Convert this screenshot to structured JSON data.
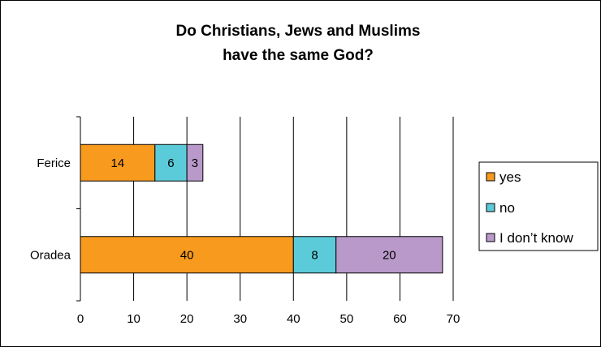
{
  "chart_data": {
    "type": "bar",
    "orientation": "horizontal",
    "stacked": true,
    "title": "Do Christians, Jews and Muslims\nhave the same God?",
    "xlabel": "",
    "ylabel": "",
    "categories": [
      "Ferice",
      "Oradea"
    ],
    "series": [
      {
        "name": "yes",
        "values": [
          14,
          40
        ],
        "color": "#F79A1E"
      },
      {
        "name": "no",
        "values": [
          6,
          8
        ],
        "color": "#5CCBD9"
      },
      {
        "name": "I don’t know",
        "values": [
          3,
          20
        ],
        "color": "#B999C9"
      }
    ],
    "xlim": [
      0,
      70
    ],
    "xticks": [
      0,
      10,
      20,
      30,
      40,
      50,
      60,
      70
    ],
    "xtick_labels": [
      "0",
      "10",
      "20",
      "30",
      "40",
      "50",
      "60",
      "70"
    ],
    "grid": "vertical",
    "legend_position": "right",
    "data_labels": true
  }
}
